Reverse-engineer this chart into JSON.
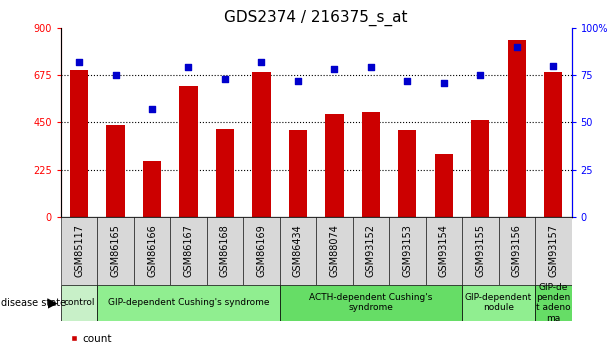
{
  "title": "GDS2374 / 216375_s_at",
  "samples": [
    "GSM85117",
    "GSM86165",
    "GSM86166",
    "GSM86167",
    "GSM86168",
    "GSM86169",
    "GSM86434",
    "GSM88074",
    "GSM93152",
    "GSM93153",
    "GSM93154",
    "GSM93155",
    "GSM93156",
    "GSM93157"
  ],
  "counts": [
    700,
    440,
    265,
    625,
    420,
    690,
    415,
    490,
    500,
    415,
    300,
    460,
    840,
    690
  ],
  "percentiles": [
    82,
    75,
    57,
    79,
    73,
    82,
    72,
    78,
    79,
    72,
    71,
    75,
    90,
    80
  ],
  "disease_groups": [
    {
      "label": "control",
      "start": 0,
      "end": 1,
      "color": "#c8f0c8"
    },
    {
      "label": "GIP-dependent Cushing's syndrome",
      "start": 1,
      "end": 6,
      "color": "#90ee90"
    },
    {
      "label": "ACTH-dependent Cushing's\nsyndrome",
      "start": 6,
      "end": 11,
      "color": "#66dd66"
    },
    {
      "label": "GIP-dependent\nnodule",
      "start": 11,
      "end": 13,
      "color": "#90ee90"
    },
    {
      "label": "GIP-de\npenden\nt adeno\nma",
      "start": 13,
      "end": 14,
      "color": "#66dd66"
    }
  ],
  "ylim_left": [
    0,
    900
  ],
  "ylim_right": [
    0,
    100
  ],
  "yticks_left": [
    0,
    225,
    450,
    675,
    900
  ],
  "yticks_right": [
    0,
    25,
    50,
    75,
    100
  ],
  "bar_color": "#cc0000",
  "dot_color": "#0000cc",
  "bar_width": 0.5,
  "bg_color": "#ffffff",
  "title_fontsize": 11,
  "tick_fontsize": 7,
  "ann_fontsize": 6.5,
  "legend_fontsize": 7.5
}
